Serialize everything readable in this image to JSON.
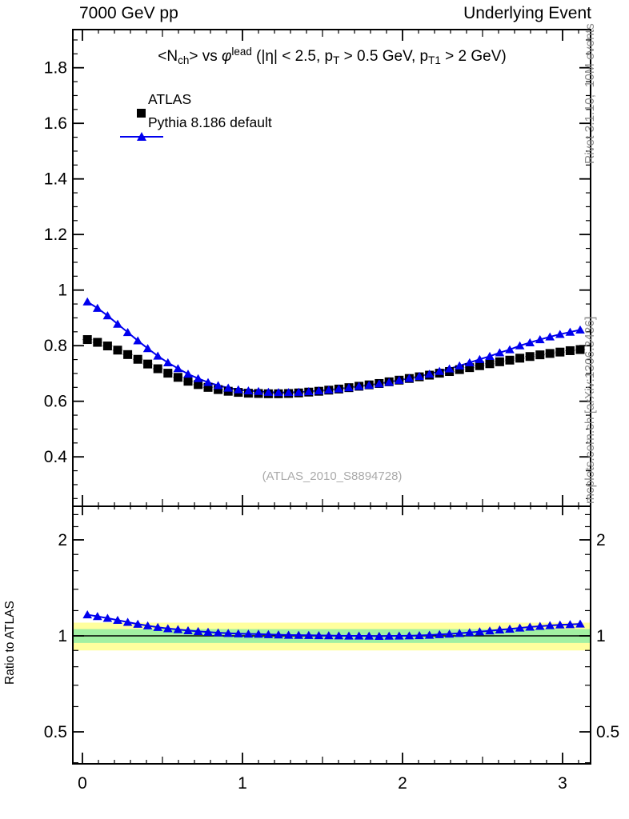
{
  "header": {
    "left": "7000 GeV pp",
    "right": "Underlying Event"
  },
  "title_segments": [
    {
      "t": "<N",
      "s": "n"
    },
    {
      "t": "ch",
      "s": "sub"
    },
    {
      "t": "> vs ",
      "s": "n"
    },
    {
      "t": "φ",
      "s": "i"
    },
    {
      "t": "lead",
      "s": "sup"
    },
    {
      "t": " (|η| < 2.5, p",
      "s": "n"
    },
    {
      "t": "T",
      "s": "sub"
    },
    {
      "t": " > 0.5 GeV, p",
      "s": "n"
    },
    {
      "t": "T1",
      "s": "sub"
    },
    {
      "t": " > 2 GeV)",
      "s": "n"
    }
  ],
  "legend": [
    {
      "label": "ATLAS",
      "marker": "black-square"
    },
    {
      "label": "Pythia 8.186 default",
      "marker": "blue-triangle-line"
    }
  ],
  "side_notes": {
    "top_right": "Rivet 3.1.10,  10M events",
    "bottom_right": "mcplots.cern.ch [arXiv:1306.3436]"
  },
  "watermark": "(ATLAS_2010_S8894728)",
  "ratio_ylabel": "Ratio to ATLAS",
  "colors": {
    "mc_blue": "#0000ee",
    "data_black": "#000000",
    "band_yellow": "#ffff9e",
    "band_green": "#a2f0a2",
    "gray_note": "#8c8c8c",
    "watermark_gray": "#aaaaaa",
    "binbar_gray": "#999999"
  },
  "chart_data": {
    "type": "line",
    "title": "<Nch> vs phi-lead (|eta| < 2.5, pT > 0.5 GeV, pT1 > 2 GeV)",
    "xlabel": "",
    "ylabel_ratio": "Ratio to ATLAS",
    "x_axis": {
      "ticks": [
        0,
        1,
        2,
        3
      ],
      "range": [
        -0.06,
        3.175
      ],
      "minor_step": 0.1
    },
    "y_axis_main": {
      "tick_labels": [
        0.4,
        0.6,
        0.8,
        1,
        1.2,
        1.4,
        1.6,
        1.8
      ],
      "range": [
        0.223,
        1.938
      ],
      "major_step": 0.2,
      "minor_step": 0.05
    },
    "y_axis_ratio": {
      "scale": "log",
      "tick_labels": [
        0.5,
        1,
        2
      ],
      "minor_ticks": [
        0.4,
        0.6,
        0.7,
        0.8,
        0.9,
        1.2,
        1.4,
        1.6,
        1.8,
        2.2,
        2.4
      ],
      "range": [
        0.397,
        2.55
      ]
    },
    "bands": {
      "yellow": [
        0.9,
        1.1
      ],
      "green": [
        0.95,
        1.05
      ],
      "center_line": 1.0
    },
    "x": [
      0.031,
      0.094,
      0.157,
      0.22,
      0.283,
      0.346,
      0.408,
      0.471,
      0.534,
      0.597,
      0.66,
      0.723,
      0.785,
      0.848,
      0.911,
      0.974,
      1.037,
      1.1,
      1.162,
      1.225,
      1.288,
      1.351,
      1.414,
      1.477,
      1.539,
      1.602,
      1.665,
      1.728,
      1.791,
      1.854,
      1.916,
      1.979,
      2.042,
      2.105,
      2.168,
      2.231,
      2.293,
      2.356,
      2.419,
      2.482,
      2.545,
      2.607,
      2.67,
      2.733,
      2.796,
      2.859,
      2.921,
      2.984,
      3.047,
      3.11
    ],
    "series": [
      {
        "name": "ATLAS",
        "marker": "square",
        "color": "#000000",
        "values": [
          0.822,
          0.812,
          0.799,
          0.784,
          0.768,
          0.751,
          0.734,
          0.717,
          0.701,
          0.686,
          0.672,
          0.66,
          0.65,
          0.642,
          0.636,
          0.632,
          0.629,
          0.628,
          0.627,
          0.627,
          0.628,
          0.63,
          0.633,
          0.636,
          0.64,
          0.644,
          0.649,
          0.654,
          0.659,
          0.664,
          0.67,
          0.676,
          0.682,
          0.688,
          0.694,
          0.701,
          0.707,
          0.714,
          0.721,
          0.728,
          0.735,
          0.742,
          0.748,
          0.755,
          0.761,
          0.767,
          0.772,
          0.777,
          0.782,
          0.786
        ]
      },
      {
        "name": "Pythia 8.186 default",
        "marker": "triangle",
        "color": "#0000ee",
        "values": [
          0.958,
          0.935,
          0.908,
          0.878,
          0.848,
          0.818,
          0.79,
          0.763,
          0.739,
          0.718,
          0.698,
          0.682,
          0.668,
          0.657,
          0.648,
          0.642,
          0.638,
          0.636,
          0.633,
          0.632,
          0.632,
          0.633,
          0.635,
          0.638,
          0.641,
          0.645,
          0.649,
          0.654,
          0.658,
          0.663,
          0.669,
          0.676,
          0.683,
          0.69,
          0.698,
          0.708,
          0.717,
          0.728,
          0.739,
          0.751,
          0.762,
          0.775,
          0.786,
          0.8,
          0.811,
          0.822,
          0.832,
          0.841,
          0.849,
          0.857
        ]
      }
    ],
    "ratio_series": {
      "name": "Pythia 8.186 default / ATLAS",
      "values": [
        1.165,
        1.151,
        1.136,
        1.12,
        1.104,
        1.089,
        1.076,
        1.064,
        1.054,
        1.047,
        1.039,
        1.033,
        1.028,
        1.023,
        1.019,
        1.016,
        1.014,
        1.013,
        1.01,
        1.008,
        1.006,
        1.005,
        1.004,
        1.003,
        1.002,
        1.001,
        1.0,
        1.0,
        0.999,
        0.998,
        0.999,
        1.0,
        1.001,
        1.003,
        1.006,
        1.01,
        1.014,
        1.019,
        1.025,
        1.031,
        1.037,
        1.045,
        1.051,
        1.059,
        1.066,
        1.072,
        1.078,
        1.083,
        1.086,
        1.09
      ]
    }
  }
}
